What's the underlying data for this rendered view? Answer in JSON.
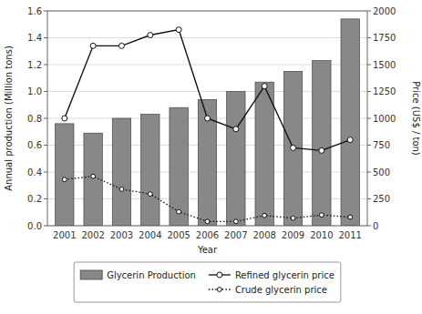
{
  "chart_data": {
    "type": "bar",
    "categories": [
      "2001",
      "2002",
      "2003",
      "2004",
      "2005",
      "2006",
      "2007",
      "2008",
      "2009",
      "2010",
      "2011"
    ],
    "xlabel": "Year",
    "ylabel": "Annual production (Million tons)",
    "y2label": "Price (US$ / ton)",
    "ylim": [
      0.0,
      1.6
    ],
    "yticks": [
      {
        "value": 0.0,
        "label": "0.0"
      },
      0.2,
      0.4,
      0.6,
      0.8,
      {
        "value": 1.0,
        "label": "1.0"
      },
      1.2,
      1.4,
      1.6
    ],
    "y2lim": [
      0,
      2000
    ],
    "y2ticks": [
      0,
      250,
      500,
      750,
      1000,
      1250,
      1500,
      1750,
      2000
    ],
    "grid": true,
    "legend": "bottom",
    "series": [
      {
        "name": "Glycerin Production",
        "type": "bar",
        "color": "#888888",
        "values": [
          0.76,
          0.69,
          0.8,
          0.83,
          0.88,
          0.94,
          1.0,
          1.07,
          1.15,
          1.23,
          1.54
        ]
      },
      {
        "name": "Refined glycerin price",
        "type": "line",
        "axis": "y2",
        "color": "#111111",
        "marker": "circle",
        "line_style": "solid",
        "values": [
          1000,
          1675,
          1675,
          1775,
          1825,
          1000,
          900,
          1300,
          725,
          700,
          800
        ]
      },
      {
        "name": "Crude glycerin price",
        "type": "line",
        "axis": "y2",
        "color": "#111111",
        "marker": "circle",
        "line_style": "dotted",
        "values": [
          430,
          460,
          340,
          295,
          130,
          40,
          40,
          95,
          70,
          100,
          80
        ]
      }
    ]
  }
}
